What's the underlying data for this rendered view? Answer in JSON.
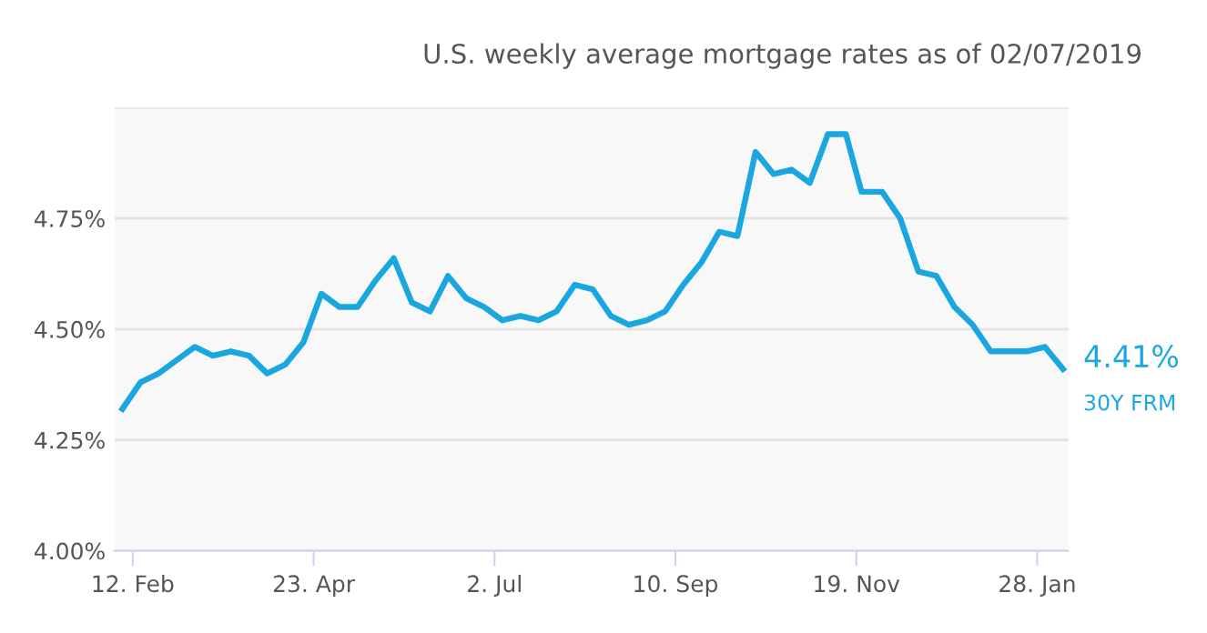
{
  "chart_data": {
    "type": "line",
    "title": "U.S. weekly average mortgage rates as of 02/07/2019",
    "x": [
      "2018-02-08",
      "2018-02-15",
      "2018-02-22",
      "2018-03-01",
      "2018-03-08",
      "2018-03-15",
      "2018-03-22",
      "2018-03-29",
      "2018-04-05",
      "2018-04-12",
      "2018-04-19",
      "2018-04-26",
      "2018-05-03",
      "2018-05-10",
      "2018-05-17",
      "2018-05-24",
      "2018-05-31",
      "2018-06-07",
      "2018-06-14",
      "2018-06-21",
      "2018-06-28",
      "2018-07-05",
      "2018-07-12",
      "2018-07-19",
      "2018-07-26",
      "2018-08-02",
      "2018-08-09",
      "2018-08-16",
      "2018-08-23",
      "2018-08-30",
      "2018-09-06",
      "2018-09-13",
      "2018-09-20",
      "2018-09-27",
      "2018-10-04",
      "2018-10-11",
      "2018-10-18",
      "2018-10-25",
      "2018-11-01",
      "2018-11-08",
      "2018-11-15",
      "2018-11-21",
      "2018-11-29",
      "2018-12-06",
      "2018-12-13",
      "2018-12-20",
      "2018-12-27",
      "2019-01-03",
      "2019-01-10",
      "2019-01-17",
      "2019-01-24",
      "2019-01-31",
      "2019-02-07"
    ],
    "series": [
      {
        "name": "30Y FRM",
        "color": "#1aa7e0",
        "values": [
          4.32,
          4.38,
          4.4,
          4.43,
          4.46,
          4.44,
          4.45,
          4.44,
          4.4,
          4.42,
          4.47,
          4.58,
          4.55,
          4.55,
          4.61,
          4.66,
          4.56,
          4.54,
          4.62,
          4.57,
          4.55,
          4.52,
          4.53,
          4.52,
          4.54,
          4.6,
          4.59,
          4.53,
          4.51,
          4.52,
          4.54,
          4.6,
          4.65,
          4.72,
          4.71,
          4.9,
          4.85,
          4.86,
          4.83,
          4.94,
          4.94,
          4.81,
          4.81,
          4.75,
          4.63,
          4.62,
          4.55,
          4.51,
          4.45,
          4.45,
          4.45,
          4.46,
          4.41
        ]
      }
    ],
    "annotations": [
      {
        "text": "4.41%",
        "x": "2019-02-07",
        "y": 4.41
      }
    ],
    "xlim": [
      "2018-02-05",
      "2019-02-09"
    ],
    "xticks": [
      {
        "value": "2018-02-12",
        "label": "12. Feb"
      },
      {
        "value": "2018-04-23",
        "label": "23. Apr"
      },
      {
        "value": "2018-07-02",
        "label": "2. Jul"
      },
      {
        "value": "2018-09-10",
        "label": "10. Sep"
      },
      {
        "value": "2018-11-19",
        "label": "19. Nov"
      },
      {
        "value": "2019-01-28",
        "label": "28. Jan"
      }
    ],
    "ylim": [
      4.0,
      5.0
    ],
    "yticks": [
      {
        "value": 4.0,
        "label": "4.00%"
      },
      {
        "value": 4.25,
        "label": "4.25%"
      },
      {
        "value": 4.5,
        "label": "4.50%"
      },
      {
        "value": 4.75,
        "label": "4.75%"
      },
      {
        "value": 5.0,
        "label": null
      }
    ],
    "grid": "y",
    "legend": false,
    "marker": "none",
    "line_style": "solid"
  }
}
